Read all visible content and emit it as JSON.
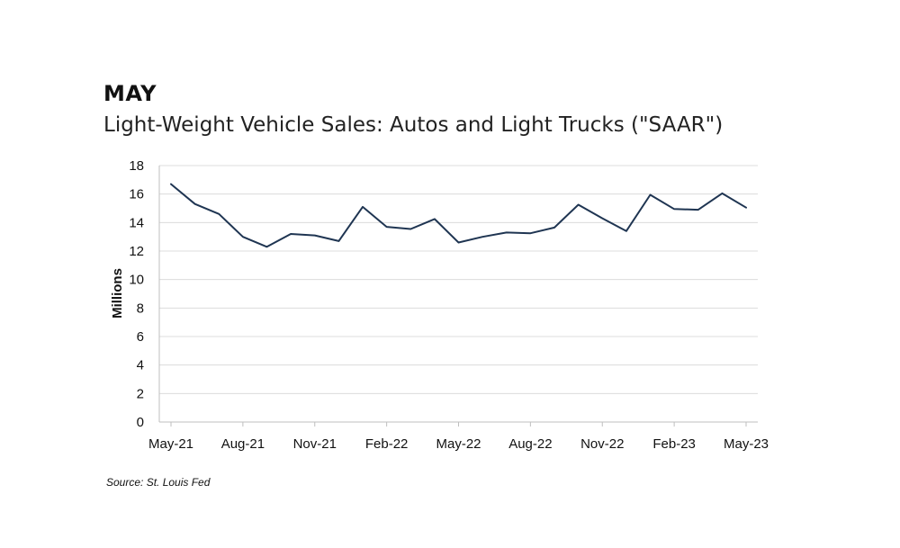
{
  "header": {
    "kicker": "MAY",
    "title": "Light-Weight Vehicle Sales: Autos and Light Trucks (\"SAAR\")"
  },
  "footer": {
    "source": "Source: St. Louis Fed"
  },
  "chart_data": {
    "type": "line",
    "title": "Light-Weight Vehicle Sales: Autos and Light Trucks (\"SAAR\")",
    "xlabel": "",
    "ylabel": "Millions",
    "ylim": [
      0,
      18
    ],
    "yticks": [
      0,
      2,
      4,
      6,
      8,
      10,
      12,
      14,
      16,
      18
    ],
    "xtick_labels": [
      "May-21",
      "Aug-21",
      "Nov-21",
      "Feb-22",
      "May-22",
      "Aug-22",
      "Nov-22",
      "Feb-23",
      "May-23"
    ],
    "grid": true,
    "legend": "none",
    "line_color": "#1f3552",
    "x": [
      "May-21",
      "Jun-21",
      "Jul-21",
      "Aug-21",
      "Sep-21",
      "Oct-21",
      "Nov-21",
      "Dec-21",
      "Jan-22",
      "Feb-22",
      "Mar-22",
      "Apr-22",
      "May-22",
      "Jun-22",
      "Jul-22",
      "Aug-22",
      "Sep-22",
      "Oct-22",
      "Nov-22",
      "Dec-22",
      "Jan-23",
      "Feb-23",
      "Mar-23",
      "Apr-23",
      "May-23"
    ],
    "series": [
      {
        "values": [
          16.7,
          15.3,
          14.6,
          13.0,
          12.3,
          13.2,
          13.1,
          12.7,
          15.1,
          13.7,
          13.55,
          14.25,
          12.6,
          13.0,
          13.3,
          13.25,
          13.65,
          15.25,
          14.3,
          13.4,
          15.95,
          14.95,
          14.9,
          16.05,
          15.05
        ]
      }
    ]
  }
}
